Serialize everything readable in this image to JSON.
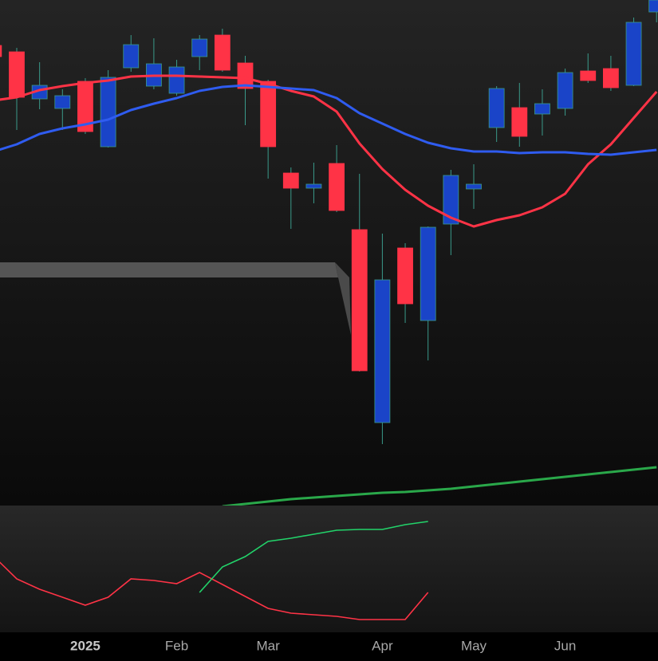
{
  "chart_data": [
    {
      "type": "candlestick",
      "categories": [
        null,
        null,
        null,
        null,
        "2025",
        null,
        null,
        null,
        "Feb",
        null,
        null,
        null,
        "Mar",
        null,
        null,
        null,
        null,
        "Apr",
        null,
        null,
        null,
        "May",
        null,
        null,
        null,
        "Jun",
        null,
        null,
        null,
        null
      ],
      "open": [
        577,
        569,
        510,
        498,
        532,
        450,
        549,
        526,
        517,
        563,
        590,
        555,
        532,
        417,
        398,
        429,
        346,
        104,
        323,
        232,
        353,
        397,
        474,
        499,
        491,
        498,
        545,
        548,
        527,
        619
      ],
      "high": [
        584,
        574,
        556,
        522,
        536,
        546,
        590,
        586,
        559,
        590,
        598,
        564,
        534,
        424,
        430,
        452,
        416,
        341,
        329,
        350,
        421,
        428,
        526,
        530,
        522,
        548,
        567,
        564,
        612,
        639
      ],
      "low": [
        559,
        471,
        497,
        471,
        466,
        449,
        544,
        522,
        514,
        546,
        544,
        477,
        410,
        347,
        379,
        368,
        168,
        77,
        229,
        182,
        314,
        372,
        456,
        450,
        464,
        489,
        530,
        520,
        526,
        606
      ],
      "close": [
        563,
        512,
        527,
        514,
        469,
        537,
        578,
        554,
        550,
        585,
        546,
        523,
        450,
        398,
        403,
        370,
        169,
        283,
        253,
        349,
        414,
        403,
        523,
        463,
        504,
        543,
        533,
        524,
        606,
        634
      ],
      "up_color": "#1a44c8",
      "down_color": "#ff3346",
      "ylim": [
        0,
        634
      ],
      "series": [
        {
          "color": "#ff3346",
          "values": [
            508,
            512,
            521,
            526,
            530,
            533,
            538,
            539,
            539,
            538,
            537,
            536,
            529,
            520,
            513,
            494,
            454,
            422,
            396,
            376,
            361,
            350,
            358,
            364,
            374,
            391,
            428,
            453,
            486,
            519
          ]
        },
        {
          "color": "#2f5cf0",
          "values": [
            444,
            453,
            466,
            473,
            478,
            484,
            496,
            504,
            511,
            520,
            525,
            527,
            525,
            523,
            521,
            511,
            492,
            479,
            466,
            455,
            448,
            444,
            444,
            442,
            443,
            443,
            441,
            440,
            443,
            446
          ]
        },
        {
          "color": "#2aa84a",
          "values": [
            null,
            null,
            null,
            null,
            null,
            null,
            null,
            null,
            null,
            null,
            -1,
            2,
            5,
            8,
            10,
            12,
            14,
            16,
            17,
            19,
            21,
            24,
            27,
            30,
            33,
            36,
            39,
            42,
            45,
            48
          ]
        }
      ]
    },
    {
      "type": "line",
      "ylim": [
        0,
        159
      ],
      "series": [
        {
          "color": "#ff3346",
          "values": [
            95,
            67,
            54,
            44,
            34,
            44,
            67,
            65,
            61,
            75,
            60,
            45,
            30,
            24,
            22,
            20,
            16,
            16,
            16,
            50,
            null,
            null,
            null,
            null,
            null,
            null,
            null,
            null,
            null,
            null
          ]
        },
        {
          "color": "#22d36a",
          "values": [
            null,
            null,
            null,
            null,
            null,
            null,
            null,
            null,
            null,
            50,
            82,
            95,
            114,
            118,
            123,
            128,
            129,
            129,
            135,
            139
          ]
        }
      ]
    }
  ]
}
